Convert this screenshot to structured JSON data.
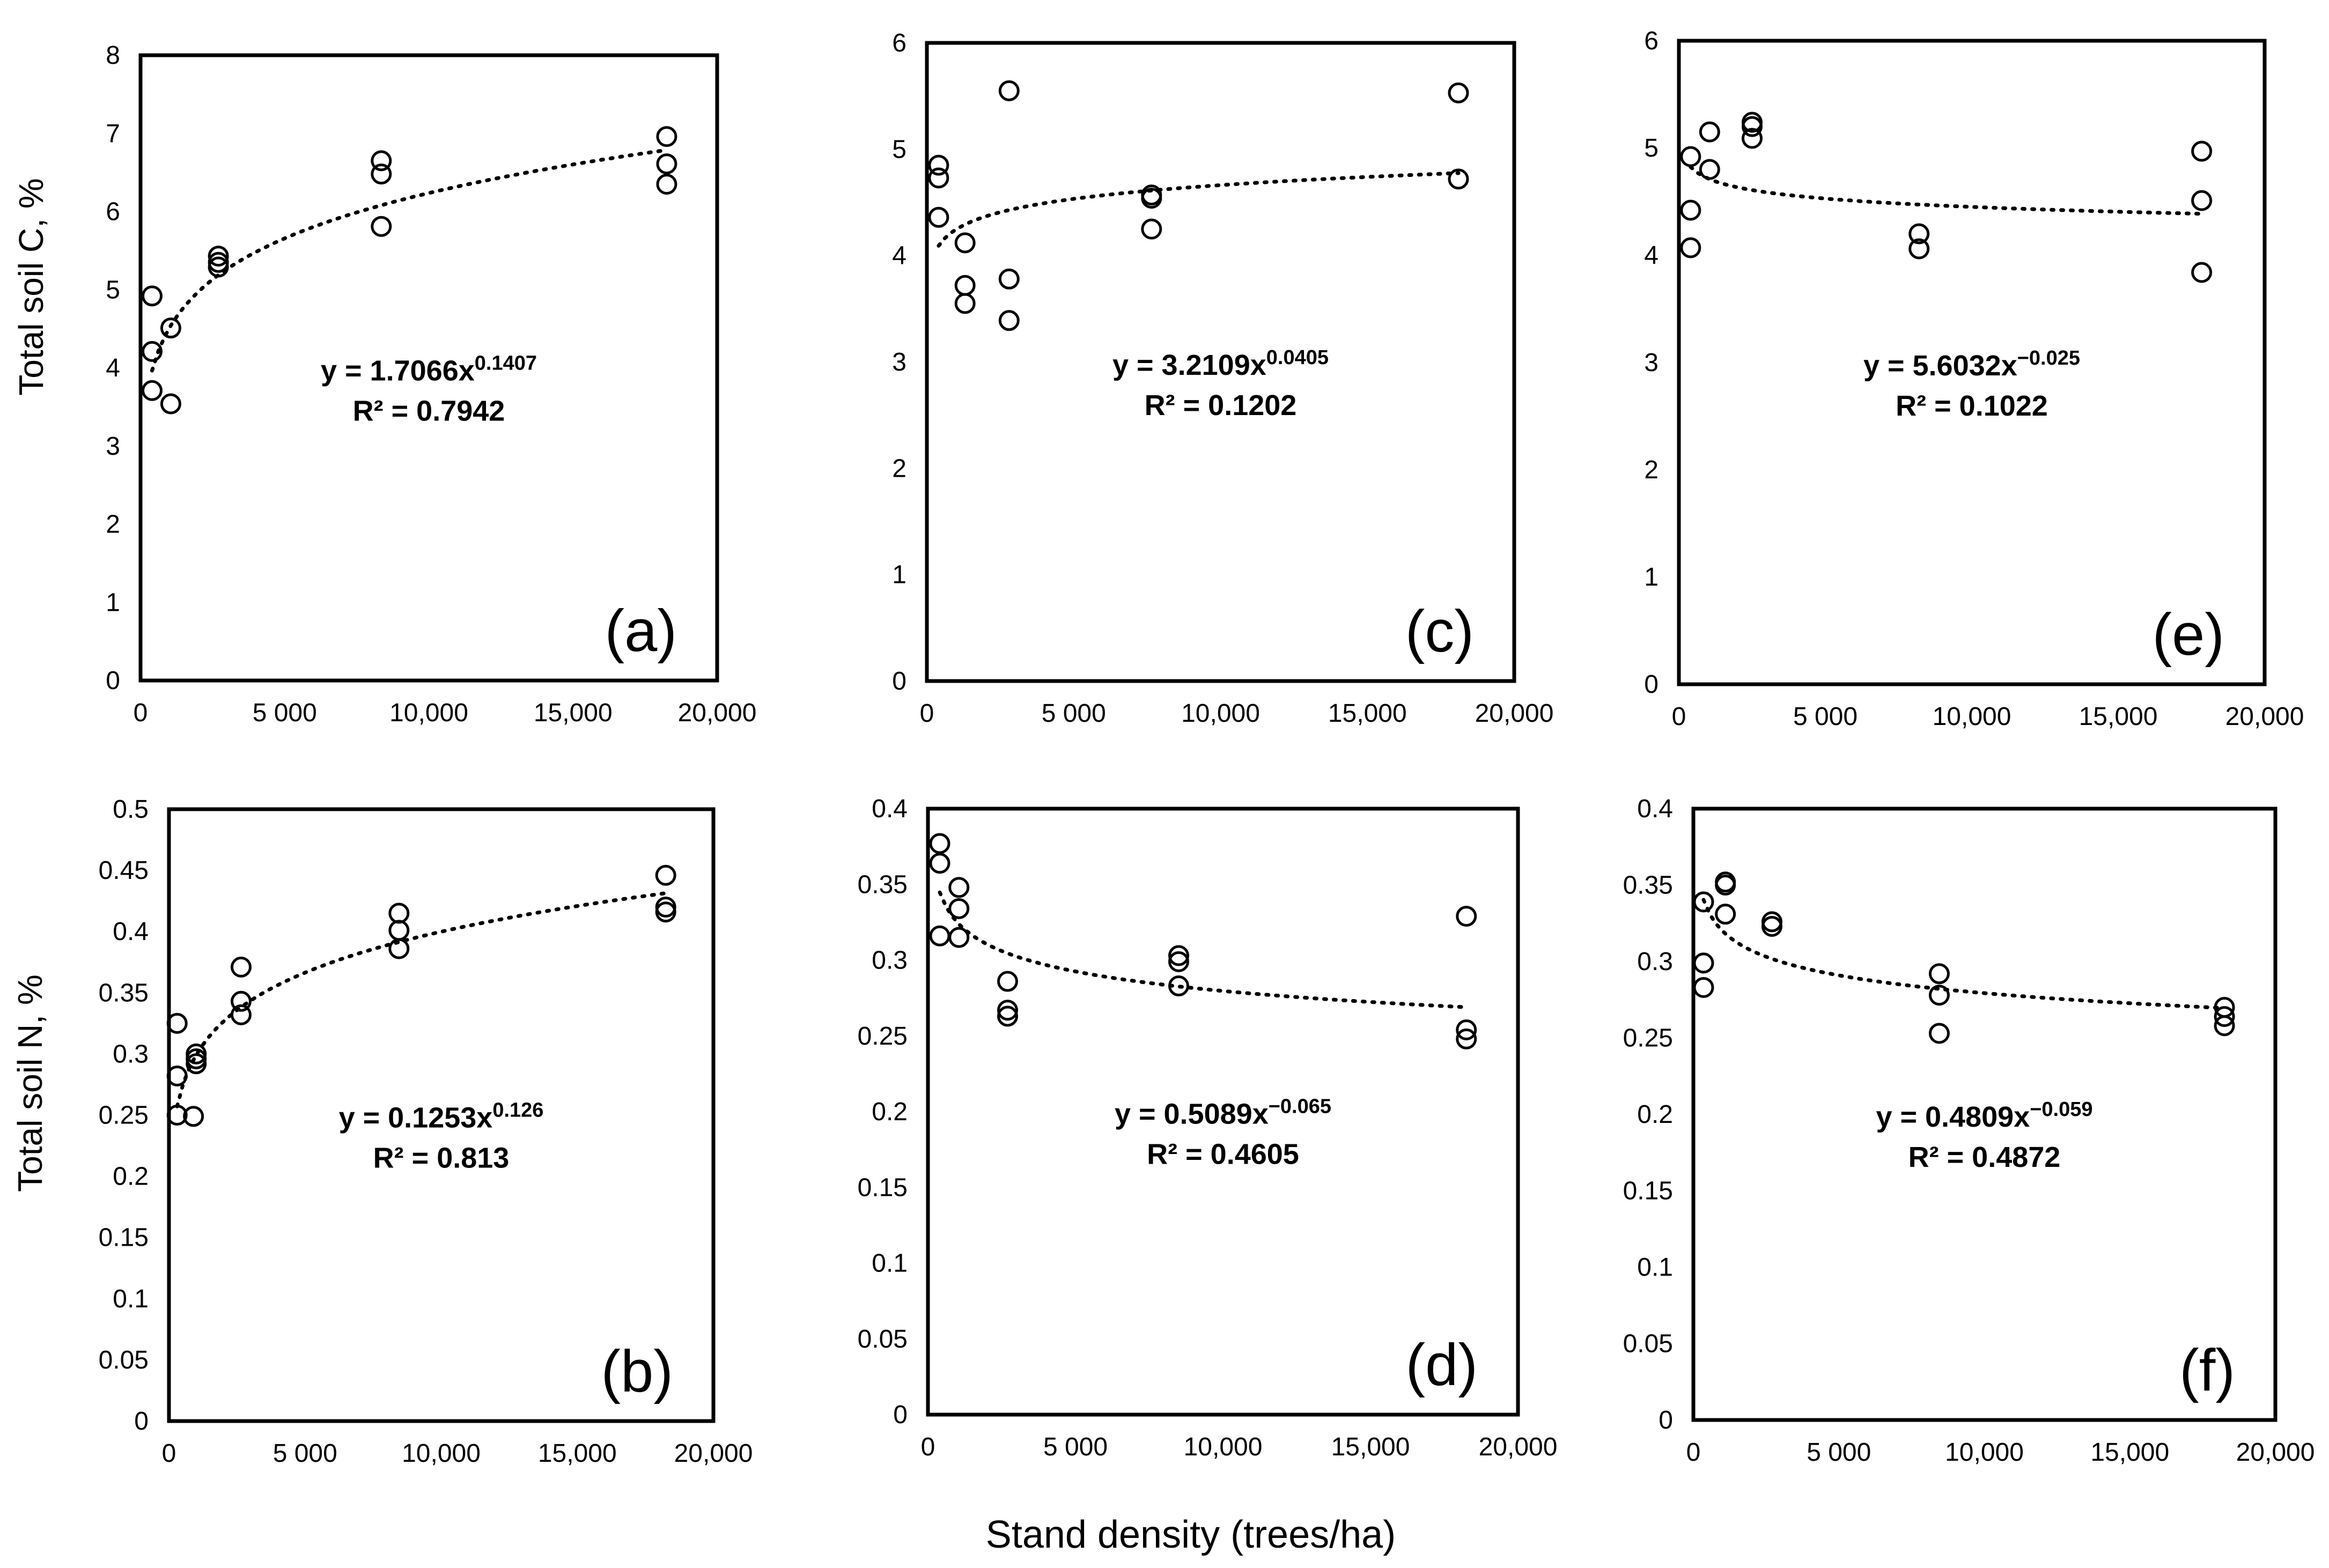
{
  "figure": {
    "shared_xlabel": "Stand density (trees/ha)",
    "row_ylabels": [
      "Total soil C, %",
      "Total soil N, %"
    ],
    "x_tick_labels": [
      "0",
      "5 000",
      "10,000",
      "15,000",
      "20,000"
    ],
    "colors": {
      "frame": "#000000",
      "marker": "#000000",
      "trend": "#000000",
      "background": "#ffffff"
    }
  },
  "chart_data": [
    {
      "id": "a",
      "type": "scatter",
      "panel_label": "(a)",
      "xlim": [
        0,
        20000
      ],
      "ylim": [
        0,
        8
      ],
      "y_ticks": [
        0,
        1,
        2,
        3,
        4,
        5,
        6,
        7,
        8
      ],
      "y_tick_labels": [
        "0",
        "1",
        "2",
        "3",
        "4",
        "5",
        "6",
        "7",
        "8"
      ],
      "x_ticks": [
        0,
        5000,
        10000,
        15000,
        20000
      ],
      "x": [
        400,
        400,
        400,
        1050,
        1050,
        2700,
        2700,
        2700,
        8350,
        8350,
        8350,
        18250,
        18250,
        18250
      ],
      "y": [
        4.92,
        4.21,
        3.71,
        4.51,
        3.54,
        5.43,
        5.35,
        5.29,
        6.65,
        6.48,
        5.81,
        6.96,
        6.61,
        6.35
      ],
      "trend": {
        "kind": "power",
        "a": 1.7066,
        "b": 0.1407,
        "x_from": 400,
        "x_to": 18250
      },
      "equation_main": "y = 1.7066x",
      "equation_exp": "0.1407",
      "r2": "R² = 0.7942"
    },
    {
      "id": "b",
      "type": "scatter",
      "panel_label": "(b)",
      "xlim": [
        0,
        20000
      ],
      "ylim": [
        0,
        0.5
      ],
      "y_ticks": [
        0,
        0.05,
        0.1,
        0.15,
        0.2,
        0.25,
        0.3,
        0.35,
        0.4,
        0.45,
        0.5
      ],
      "y_tick_labels": [
        "0",
        "0.05",
        "0.1",
        "0.15",
        "0.2",
        "0.25",
        "0.3",
        "0.35",
        "0.4",
        "0.45",
        "0.5"
      ],
      "x_ticks": [
        0,
        5000,
        10000,
        15000,
        20000
      ],
      "x": [
        300,
        300,
        300,
        1000,
        1000,
        1000,
        900,
        2650,
        2650,
        2650,
        8450,
        8450,
        8450,
        18250,
        18250,
        18250
      ],
      "y": [
        0.325,
        0.282,
        0.25,
        0.3,
        0.296,
        0.292,
        0.249,
        0.371,
        0.343,
        0.332,
        0.415,
        0.401,
        0.386,
        0.446,
        0.42,
        0.416
      ],
      "trend": {
        "kind": "power",
        "a": 0.1253,
        "b": 0.126,
        "x_from": 300,
        "x_to": 18250
      },
      "equation_main": "y = 0.1253x",
      "equation_exp": "0.126",
      "r2": "R² = 0.813"
    },
    {
      "id": "c",
      "type": "scatter",
      "panel_label": "(c)",
      "xlim": [
        0,
        20000
      ],
      "ylim": [
        0,
        6
      ],
      "y_ticks": [
        0,
        1,
        2,
        3,
        4,
        5,
        6
      ],
      "y_tick_labels": [
        "0",
        "1",
        "2",
        "3",
        "4",
        "5",
        "6"
      ],
      "x_ticks": [
        0,
        5000,
        10000,
        15000,
        20000
      ],
      "x": [
        400,
        400,
        400,
        1300,
        1300,
        1300,
        2800,
        2800,
        2800,
        7650,
        7650,
        7650,
        18100,
        18100
      ],
      "y": [
        4.85,
        4.73,
        4.36,
        4.12,
        3.72,
        3.55,
        5.55,
        3.78,
        3.39,
        4.57,
        4.54,
        4.25,
        5.53,
        4.72
      ],
      "trend": {
        "kind": "power",
        "a": 3.2109,
        "b": 0.0405,
        "x_from": 400,
        "x_to": 18100
      },
      "equation_main": "y = 3.2109x",
      "equation_exp": "0.0405",
      "r2": "R² = 0.1202"
    },
    {
      "id": "d",
      "type": "scatter",
      "panel_label": "(d)",
      "xlim": [
        0,
        20000
      ],
      "ylim": [
        0,
        0.4
      ],
      "y_ticks": [
        0,
        0.05,
        0.1,
        0.15,
        0.2,
        0.25,
        0.3,
        0.35,
        0.4
      ],
      "y_tick_labels": [
        "0",
        "0.05",
        "0.1",
        "0.15",
        "0.2",
        "0.25",
        "0.3",
        "0.35",
        "0.4"
      ],
      "x_ticks": [
        0,
        5000,
        10000,
        15000,
        20000
      ],
      "x": [
        400,
        400,
        400,
        1050,
        1050,
        1050,
        2700,
        2700,
        2700,
        8500,
        8500,
        8500,
        18250,
        18250,
        18250
      ],
      "y": [
        0.377,
        0.364,
        0.316,
        0.348,
        0.334,
        0.315,
        0.286,
        0.267,
        0.263,
        0.303,
        0.299,
        0.283,
        0.329,
        0.254,
        0.248
      ],
      "trend": {
        "kind": "power",
        "a": 0.5089,
        "b": -0.065,
        "x_from": 400,
        "x_to": 18250
      },
      "equation_main": "y = 0.5089x",
      "equation_exp": "−0.065",
      "r2": "R² = 0.4605"
    },
    {
      "id": "e",
      "type": "scatter",
      "panel_label": "(e)",
      "xlim": [
        0,
        20000
      ],
      "ylim": [
        0,
        6
      ],
      "y_ticks": [
        0,
        1,
        2,
        3,
        4,
        5,
        6
      ],
      "y_tick_labels": [
        "0",
        "1",
        "2",
        "3",
        "4",
        "5",
        "6"
      ],
      "x_ticks": [
        0,
        5000,
        10000,
        15000,
        20000
      ],
      "x": [
        400,
        400,
        400,
        1050,
        1050,
        2500,
        2500,
        2500,
        8200,
        8200,
        17850,
        17850,
        17850
      ],
      "y": [
        4.92,
        4.42,
        4.07,
        5.15,
        4.8,
        5.24,
        5.2,
        5.09,
        4.2,
        4.06,
        4.97,
        4.51,
        3.84
      ],
      "trend": {
        "kind": "power",
        "a": 5.6032,
        "b": -0.025,
        "x_from": 400,
        "x_to": 17850
      },
      "equation_main": "y = 5.6032x",
      "equation_exp": "−0.025",
      "r2": "R² = 0.1022"
    },
    {
      "id": "f",
      "type": "scatter",
      "panel_label": "(f)",
      "xlim": [
        0,
        20000
      ],
      "ylim": [
        0,
        0.4
      ],
      "y_ticks": [
        0,
        0.05,
        0.1,
        0.15,
        0.2,
        0.25,
        0.3,
        0.35,
        0.4
      ],
      "y_tick_labels": [
        "0",
        "0.05",
        "0.1",
        "0.15",
        "0.2",
        "0.25",
        "0.3",
        "0.35",
        "0.4"
      ],
      "x_ticks": [
        0,
        5000,
        10000,
        15000,
        20000
      ],
      "x": [
        350,
        350,
        350,
        1100,
        1100,
        1100,
        2700,
        2700,
        8450,
        8450,
        8450,
        18250,
        18250,
        18250
      ],
      "y": [
        0.339,
        0.299,
        0.283,
        0.352,
        0.35,
        0.331,
        0.326,
        0.323,
        0.292,
        0.278,
        0.253,
        0.27,
        0.264,
        0.258
      ],
      "trend": {
        "kind": "power",
        "a": 0.4809,
        "b": -0.059,
        "x_from": 350,
        "x_to": 18250
      },
      "equation_main": "y = 0.4809x",
      "equation_exp": "−0.059",
      "r2": "R² = 0.4872"
    }
  ]
}
